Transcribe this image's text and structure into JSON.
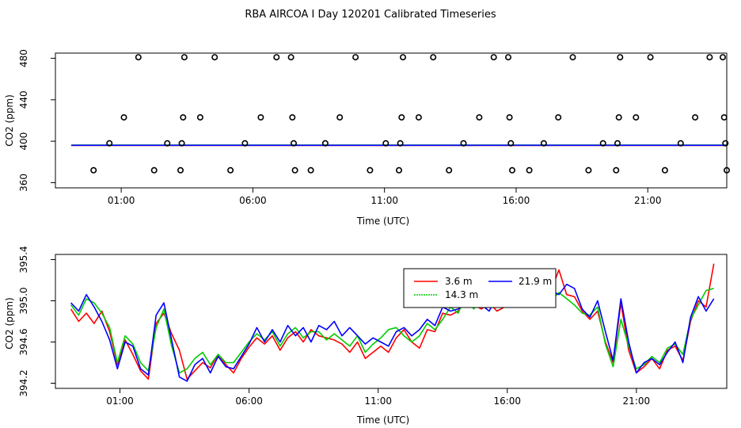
{
  "chart_data": {
    "title": "RBA AIRCOA I  Day 120201  Calibrated Timeseries",
    "charts": [
      {
        "type": "scatter",
        "xlabel": "Time (UTC)",
        "ylabel": "CO2 (ppm)",
        "xlim": [
          -1.5,
          24.0
        ],
        "ylim": [
          355,
          485
        ],
        "xticks": [
          1,
          6,
          11,
          16,
          21
        ],
        "xtick_labels": [
          "01:00",
          "06:00",
          "11:00",
          "16:00",
          "21:00"
        ],
        "yticks": [
          360,
          400,
          440,
          480
        ],
        "ytick_labels": [
          "360",
          "400",
          "440",
          "480"
        ],
        "points": [
          {
            "x": -0.05,
            "y": 372
          },
          {
            "x": 0.55,
            "y": 398
          },
          {
            "x": 1.1,
            "y": 423
          },
          {
            "x": 1.65,
            "y": 481
          },
          {
            "x": 2.25,
            "y": 372
          },
          {
            "x": 2.75,
            "y": 398
          },
          {
            "x": 3.25,
            "y": 372
          },
          {
            "x": 3.3,
            "y": 398
          },
          {
            "x": 3.35,
            "y": 423
          },
          {
            "x": 3.4,
            "y": 481
          },
          {
            "x": 4.0,
            "y": 423
          },
          {
            "x": 4.55,
            "y": 481
          },
          {
            "x": 5.15,
            "y": 372
          },
          {
            "x": 5.7,
            "y": 398
          },
          {
            "x": 6.3,
            "y": 423
          },
          {
            "x": 6.9,
            "y": 481
          },
          {
            "x": 7.45,
            "y": 481
          },
          {
            "x": 7.5,
            "y": 423
          },
          {
            "x": 7.55,
            "y": 398
          },
          {
            "x": 7.6,
            "y": 372
          },
          {
            "x": 8.2,
            "y": 372
          },
          {
            "x": 8.75,
            "y": 398
          },
          {
            "x": 9.3,
            "y": 423
          },
          {
            "x": 9.9,
            "y": 481
          },
          {
            "x": 10.45,
            "y": 372
          },
          {
            "x": 11.05,
            "y": 398
          },
          {
            "x": 11.55,
            "y": 372
          },
          {
            "x": 11.6,
            "y": 398
          },
          {
            "x": 11.65,
            "y": 423
          },
          {
            "x": 11.7,
            "y": 481
          },
          {
            "x": 12.3,
            "y": 423
          },
          {
            "x": 12.85,
            "y": 481
          },
          {
            "x": 13.45,
            "y": 372
          },
          {
            "x": 14.0,
            "y": 398
          },
          {
            "x": 14.6,
            "y": 423
          },
          {
            "x": 15.15,
            "y": 481
          },
          {
            "x": 15.7,
            "y": 481
          },
          {
            "x": 15.75,
            "y": 423
          },
          {
            "x": 15.8,
            "y": 398
          },
          {
            "x": 15.85,
            "y": 372
          },
          {
            "x": 16.5,
            "y": 372
          },
          {
            "x": 17.05,
            "y": 398
          },
          {
            "x": 17.6,
            "y": 423
          },
          {
            "x": 18.15,
            "y": 481
          },
          {
            "x": 18.75,
            "y": 372
          },
          {
            "x": 19.3,
            "y": 398
          },
          {
            "x": 19.8,
            "y": 372
          },
          {
            "x": 19.85,
            "y": 398
          },
          {
            "x": 19.9,
            "y": 423
          },
          {
            "x": 19.95,
            "y": 481
          },
          {
            "x": 20.55,
            "y": 423
          },
          {
            "x": 21.1,
            "y": 481
          },
          {
            "x": 21.65,
            "y": 372
          },
          {
            "x": 22.25,
            "y": 398
          },
          {
            "x": 22.8,
            "y": 423
          },
          {
            "x": 23.35,
            "y": 481
          },
          {
            "x": 23.85,
            "y": 481
          },
          {
            "x": 23.9,
            "y": 423
          },
          {
            "x": 23.95,
            "y": 398
          },
          {
            "x": 24.0,
            "y": 372
          }
        ],
        "series": [
          {
            "name": "3.6 m",
            "color": "#ff0000",
            "x": [
              -0.9,
              24.0
            ],
            "y": [
              396.0,
              396.0
            ]
          },
          {
            "name": "14.3 m",
            "color": "#00cc00",
            "x": [
              -0.9,
              24.0
            ],
            "y": [
              396.3,
              396.3
            ]
          },
          {
            "name": "21.9 m",
            "color": "#0000ff",
            "x": [
              -0.9,
              24.0
            ],
            "y": [
              396.1,
              396.1
            ]
          }
        ]
      },
      {
        "type": "line",
        "xlabel": "Time (UTC)",
        "ylabel": "CO2 (ppm)",
        "xlim": [
          -1.5,
          24.5
        ],
        "ylim": [
          394.15,
          395.45
        ],
        "xticks": [
          1,
          6,
          11,
          16,
          21
        ],
        "xtick_labels": [
          "01:00",
          "06:00",
          "11:00",
          "16:00",
          "21:00"
        ],
        "yticks": [
          394.2,
          394.6,
          395.0,
          395.4
        ],
        "ytick_labels": [
          "394.2",
          "394.6",
          "395.0",
          "395.4"
        ],
        "legend": [
          "3.6 m",
          "14.3 m",
          "21.9 m"
        ],
        "legend_position": "top-center",
        "series": [
          {
            "name": "3.6 m",
            "color": "#ff0000",
            "x": [
              -0.9,
              -0.6,
              -0.3,
              0.0,
              0.3,
              0.6,
              0.9,
              1.2,
              1.5,
              1.8,
              2.1,
              2.4,
              2.7,
              3.0,
              3.3,
              3.6,
              3.9,
              4.2,
              4.5,
              4.8,
              5.1,
              5.4,
              5.7,
              6.0,
              6.3,
              6.6,
              6.9,
              7.2,
              7.5,
              7.8,
              8.1,
              8.4,
              8.7,
              9.0,
              9.3,
              9.6,
              9.9,
              10.2,
              10.5,
              10.8,
              11.1,
              11.4,
              11.7,
              12.0,
              12.3,
              12.6,
              12.9,
              13.2,
              13.5,
              13.8,
              14.1,
              14.4,
              14.7,
              15.0,
              15.3,
              15.6,
              15.9,
              16.2,
              16.5,
              16.8,
              17.1,
              17.4,
              17.7,
              18.0,
              18.3,
              18.6,
              18.9,
              19.2,
              19.5,
              19.8,
              20.1,
              20.4,
              20.7,
              21.0,
              21.3,
              21.6,
              21.9,
              22.2,
              22.5,
              22.8,
              23.1,
              23.4,
              23.7,
              24.0
            ],
            "y": [
              394.92,
              394.8,
              394.88,
              394.78,
              394.9,
              394.7,
              394.38,
              394.62,
              394.48,
              394.32,
              394.24,
              394.78,
              394.88,
              394.68,
              394.52,
              394.24,
              394.32,
              394.4,
              394.35,
              394.48,
              394.38,
              394.3,
              394.44,
              394.55,
              394.64,
              394.58,
              394.66,
              394.52,
              394.64,
              394.7,
              394.6,
              394.72,
              394.66,
              394.64,
              394.62,
              394.58,
              394.5,
              394.6,
              394.44,
              394.5,
              394.56,
              394.5,
              394.64,
              394.72,
              394.6,
              394.54,
              394.72,
              394.7,
              394.88,
              394.86,
              394.9,
              395.0,
              394.96,
              394.92,
              394.98,
              394.9,
              394.94,
              395.06,
              394.98,
              395.18,
              395.04,
              395.2,
              395.1,
              395.3,
              395.06,
              395.04,
              394.9,
              394.82,
              394.9,
              394.6,
              394.4,
              394.98,
              394.52,
              394.3,
              394.36,
              394.44,
              394.34,
              394.52,
              394.56,
              394.42,
              394.8,
              395.0,
              394.94,
              395.36
            ]
          },
          {
            "name": "14.3 m",
            "color": "#00cc00",
            "x": [
              -0.9,
              -0.6,
              -0.3,
              0.0,
              0.3,
              0.6,
              0.9,
              1.2,
              1.5,
              1.8,
              2.1,
              2.4,
              2.7,
              3.0,
              3.3,
              3.6,
              3.9,
              4.2,
              4.5,
              4.8,
              5.1,
              5.4,
              5.7,
              6.0,
              6.3,
              6.6,
              6.9,
              7.2,
              7.5,
              7.8,
              8.1,
              8.4,
              8.7,
              9.0,
              9.3,
              9.6,
              9.9,
              10.2,
              10.5,
              10.8,
              11.1,
              11.4,
              11.7,
              12.0,
              12.3,
              12.6,
              12.9,
              13.2,
              13.5,
              13.8,
              14.1,
              14.4,
              14.7,
              15.0,
              15.3,
              15.6,
              15.9,
              16.2,
              16.5,
              16.8,
              17.1,
              17.4,
              17.7,
              18.0,
              18.3,
              18.6,
              18.9,
              19.2,
              19.5,
              19.8,
              20.1,
              20.4,
              20.7,
              21.0,
              21.3,
              21.6,
              21.9,
              22.2,
              22.5,
              22.8,
              23.1,
              23.4,
              23.7,
              24.0
            ],
            "y": [
              394.96,
              394.86,
              395.02,
              394.98,
              394.88,
              394.74,
              394.4,
              394.66,
              394.58,
              394.4,
              394.32,
              394.74,
              394.92,
              394.56,
              394.3,
              394.34,
              394.44,
              394.5,
              394.38,
              394.48,
              394.4,
              394.4,
              394.5,
              394.6,
              394.68,
              394.62,
              394.7,
              394.56,
              394.68,
              394.74,
              394.64,
              394.7,
              394.7,
              394.62,
              394.68,
              394.62,
              394.56,
              394.66,
              394.5,
              394.58,
              394.64,
              394.72,
              394.74,
              394.66,
              394.6,
              394.66,
              394.78,
              394.72,
              394.82,
              394.94,
              394.88,
              395.06,
              394.92,
              395.04,
              394.94,
              394.96,
              395.3,
              395.2,
              395.06,
              395.14,
              394.98,
              395.22,
              395.0,
              395.08,
              395.02,
              394.96,
              394.88,
              394.86,
              394.94,
              394.58,
              394.36,
              394.82,
              394.56,
              394.34,
              394.38,
              394.46,
              394.4,
              394.54,
              394.58,
              394.48,
              394.82,
              394.96,
              395.1,
              395.12
            ]
          },
          {
            "name": "21.9 m",
            "color": "#0000ff",
            "x": [
              -0.9,
              -0.6,
              -0.3,
              0.0,
              0.3,
              0.6,
              0.9,
              1.2,
              1.5,
              1.8,
              2.1,
              2.4,
              2.7,
              3.0,
              3.3,
              3.6,
              3.9,
              4.2,
              4.5,
              4.8,
              5.1,
              5.4,
              5.7,
              6.0,
              6.3,
              6.6,
              6.9,
              7.2,
              7.5,
              7.8,
              8.1,
              8.4,
              8.7,
              9.0,
              9.3,
              9.6,
              9.9,
              10.2,
              10.5,
              10.8,
              11.1,
              11.4,
              11.7,
              12.0,
              12.3,
              12.6,
              12.9,
              13.2,
              13.5,
              13.8,
              14.1,
              14.4,
              14.7,
              15.0,
              15.3,
              15.6,
              15.9,
              16.2,
              16.5,
              16.8,
              17.1,
              17.4,
              17.7,
              18.0,
              18.3,
              18.6,
              18.9,
              19.2,
              19.5,
              19.8,
              20.1,
              20.4,
              20.7,
              21.0,
              21.3,
              21.6,
              21.9,
              22.2,
              22.5,
              22.8,
              23.1,
              23.4,
              23.7,
              24.0
            ],
            "y": [
              394.98,
              394.9,
              395.06,
              394.94,
              394.8,
              394.62,
              394.34,
              394.6,
              394.56,
              394.34,
              394.28,
              394.86,
              394.98,
              394.62,
              394.26,
              394.22,
              394.38,
              394.44,
              394.3,
              394.46,
              394.36,
              394.34,
              394.46,
              394.58,
              394.74,
              394.6,
              394.72,
              394.6,
              394.76,
              394.66,
              394.74,
              394.6,
              394.76,
              394.72,
              394.8,
              394.66,
              394.74,
              394.66,
              394.58,
              394.64,
              394.6,
              394.56,
              394.7,
              394.74,
              394.66,
              394.72,
              394.82,
              394.76,
              394.94,
              394.9,
              394.92,
              394.98,
              395.0,
              394.96,
              394.9,
              395.04,
              395.06,
              395.14,
              395.04,
              395.1,
              395.06,
              395.18,
              395.1,
              395.06,
              395.16,
              395.12,
              394.92,
              394.84,
              395.0,
              394.7,
              394.42,
              395.02,
              394.6,
              394.3,
              394.4,
              394.44,
              394.38,
              394.5,
              394.6,
              394.4,
              394.84,
              395.04,
              394.9,
              395.02
            ]
          }
        ]
      }
    ]
  }
}
